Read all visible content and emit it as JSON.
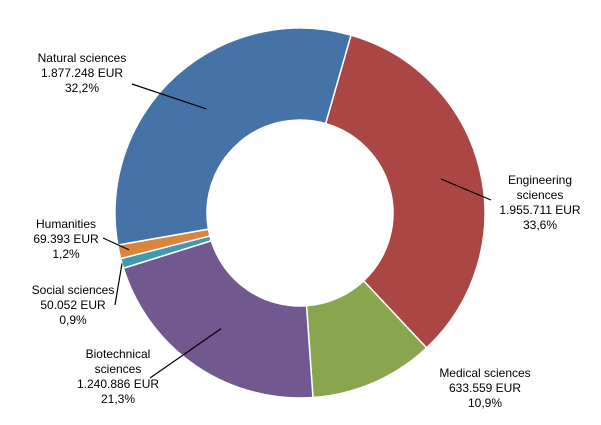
{
  "chart_data": {
    "type": "pie",
    "variant": "donut",
    "title": "",
    "legend": "none",
    "slices": [
      {
        "name_lines": [
          "Engineering",
          "sciences"
        ],
        "value": 1955711,
        "value_label": "1.955.711 EUR",
        "percent": 33.6,
        "percent_label": "33,6%",
        "color": "#AA4643"
      },
      {
        "name_lines": [
          "Medical sciences"
        ],
        "value": 633559,
        "value_label": "633.559 EUR",
        "percent": 10.9,
        "percent_label": "10,9%",
        "color": "#89A54E"
      },
      {
        "name_lines": [
          "Biotechnical",
          "sciences"
        ],
        "value": 1240886,
        "value_label": "1.240.886 EUR",
        "percent": 21.3,
        "percent_label": "21,3%",
        "color": "#71588F"
      },
      {
        "name_lines": [
          "Social sciences"
        ],
        "value": 50052,
        "value_label": "50.052 EUR",
        "percent": 0.9,
        "percent_label": "0,9%",
        "color": "#4198AF"
      },
      {
        "name_lines": [
          "Humanities"
        ],
        "value": 69393,
        "value_label": "69.393 EUR",
        "percent": 1.2,
        "percent_label": "1,2%",
        "color": "#DB843D"
      },
      {
        "name_lines": [
          "Natural sciences"
        ],
        "value": 1877248,
        "value_label": "1.877.248 EUR",
        "percent": 32.2,
        "percent_label": "32,2%",
        "color": "#4572A7"
      }
    ]
  }
}
